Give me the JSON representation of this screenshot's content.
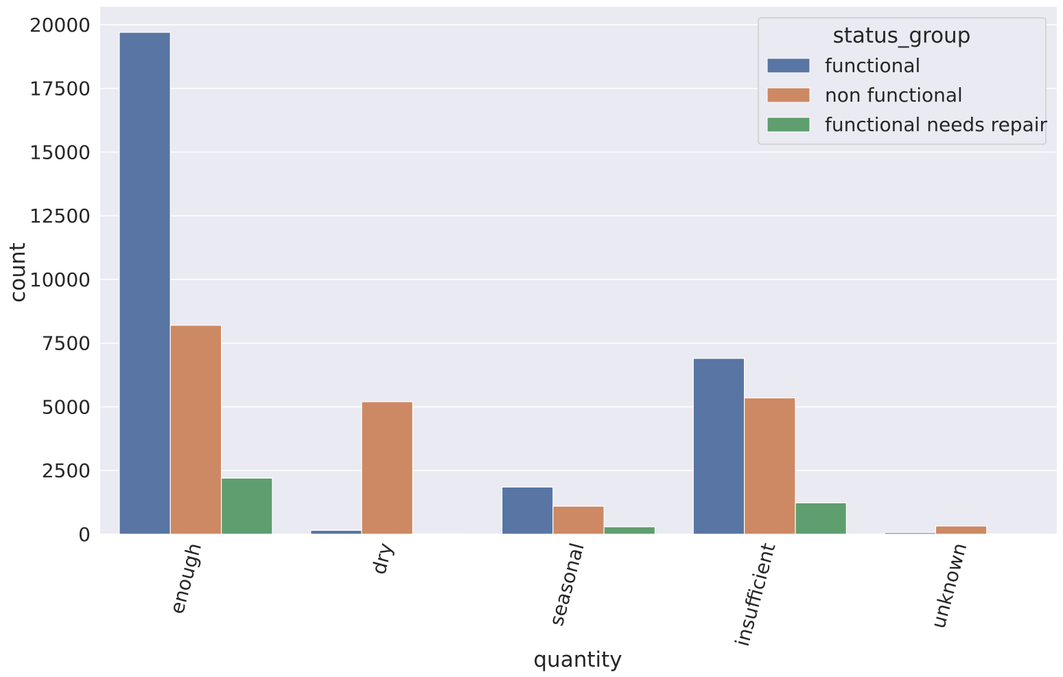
{
  "chart_data": {
    "type": "bar",
    "xlabel": "quantity",
    "ylabel": "count",
    "categories": [
      "enough",
      "dry",
      "seasonal",
      "insufficient",
      "unknown"
    ],
    "series": [
      {
        "name": "functional",
        "color": "#5875a4",
        "values": [
          19700,
          150,
          1850,
          6900,
          60
        ]
      },
      {
        "name": "non functional",
        "color": "#cc8963",
        "values": [
          8200,
          5200,
          1100,
          5350,
          320
        ]
      },
      {
        "name": "functional needs repair",
        "color": "#5f9e6e",
        "values": [
          2200,
          15,
          290,
          1230,
          10
        ]
      }
    ],
    "ylim": [
      0,
      20700
    ],
    "yticks": [
      0,
      2500,
      5000,
      7500,
      10000,
      12500,
      15000,
      17500,
      20000
    ],
    "ytick_labels": [
      "0",
      "2500",
      "5000",
      "7500",
      "10000",
      "12500",
      "15000",
      "17500",
      "20000"
    ],
    "legend": {
      "title": "status_group",
      "position": "top-right"
    },
    "grid": true,
    "xtick_rotation_deg": 75
  }
}
